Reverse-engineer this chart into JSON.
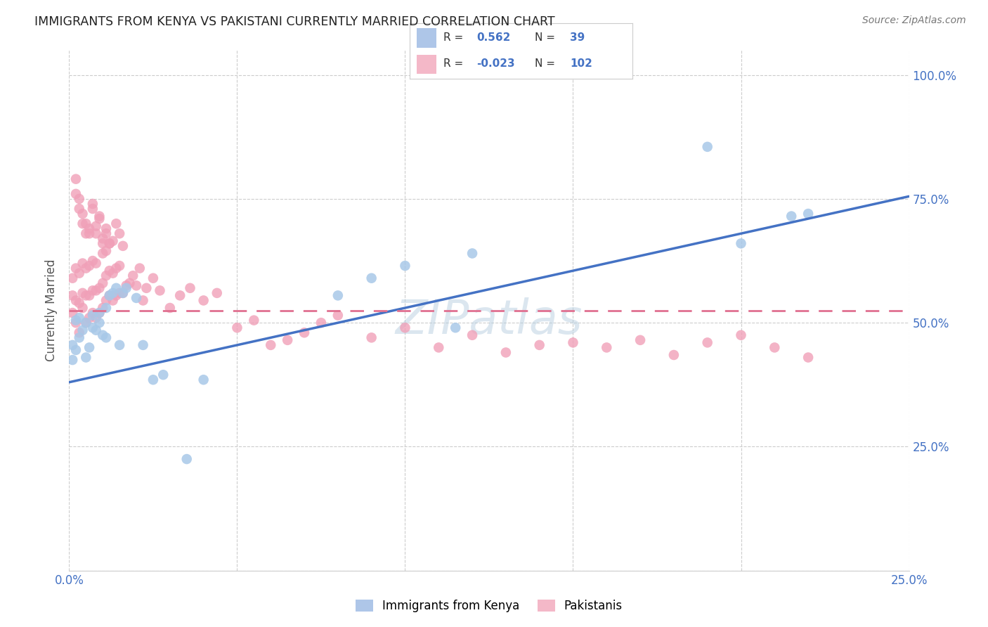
{
  "title": "IMMIGRANTS FROM KENYA VS PAKISTANI CURRENTLY MARRIED CORRELATION CHART",
  "source": "Source: ZipAtlas.com",
  "ylabel": "Currently Married",
  "xlim": [
    0,
    0.25
  ],
  "ylim": [
    0.0,
    1.05
  ],
  "ytick_vals": [
    0.0,
    0.25,
    0.5,
    0.75,
    1.0
  ],
  "ytick_labels": [
    "",
    "25.0%",
    "50.0%",
    "75.0%",
    "100.0%"
  ],
  "xtick_positions": [
    0.0,
    0.05,
    0.1,
    0.15,
    0.2,
    0.25
  ],
  "xtick_labels": [
    "0.0%",
    "",
    "",
    "",
    "",
    "25.0%"
  ],
  "r_kenya": 0.562,
  "n_kenya": 39,
  "r_pakistan": -0.023,
  "n_pakistan": 102,
  "blue_scatter_color": "#a8c8e8",
  "pink_scatter_color": "#f0a0b8",
  "blue_line_color": "#4472c4",
  "pink_line_color": "#e07090",
  "tick_color": "#4472c4",
  "grid_color": "#cccccc",
  "watermark": "ZIPatlas",
  "legend_box_blue": "#aec6e8",
  "legend_box_pink": "#f4b8c8",
  "legend_text_color": "#333333",
  "legend_value_color": "#4472c4",
  "blue_line_y0": 0.38,
  "blue_line_y1": 0.755,
  "pink_line_y0": 0.525,
  "pink_line_y1": 0.525,
  "kenya_x": [
    0.001,
    0.001,
    0.002,
    0.002,
    0.003,
    0.003,
    0.004,
    0.005,
    0.005,
    0.006,
    0.007,
    0.007,
    0.008,
    0.009,
    0.009,
    0.01,
    0.011,
    0.011,
    0.012,
    0.013,
    0.014,
    0.015,
    0.016,
    0.017,
    0.02,
    0.022,
    0.025,
    0.028,
    0.035,
    0.04,
    0.08,
    0.09,
    0.1,
    0.115,
    0.12,
    0.19,
    0.2,
    0.215,
    0.22
  ],
  "kenya_y": [
    0.425,
    0.455,
    0.445,
    0.505,
    0.47,
    0.51,
    0.485,
    0.43,
    0.5,
    0.45,
    0.49,
    0.515,
    0.485,
    0.5,
    0.52,
    0.475,
    0.47,
    0.53,
    0.555,
    0.56,
    0.57,
    0.455,
    0.56,
    0.57,
    0.55,
    0.455,
    0.385,
    0.395,
    0.225,
    0.385,
    0.555,
    0.59,
    0.615,
    0.49,
    0.64,
    0.855,
    0.66,
    0.715,
    0.72
  ],
  "pakistan_x": [
    0.001,
    0.001,
    0.001,
    0.002,
    0.002,
    0.002,
    0.003,
    0.003,
    0.003,
    0.004,
    0.004,
    0.004,
    0.005,
    0.005,
    0.005,
    0.006,
    0.006,
    0.006,
    0.007,
    0.007,
    0.007,
    0.008,
    0.008,
    0.008,
    0.009,
    0.009,
    0.01,
    0.01,
    0.01,
    0.011,
    0.011,
    0.011,
    0.012,
    0.012,
    0.013,
    0.013,
    0.014,
    0.014,
    0.015,
    0.015,
    0.016,
    0.017,
    0.018,
    0.019,
    0.02,
    0.021,
    0.022,
    0.023,
    0.025,
    0.027,
    0.03,
    0.033,
    0.036,
    0.04,
    0.044,
    0.05,
    0.055,
    0.06,
    0.065,
    0.07,
    0.075,
    0.08,
    0.09,
    0.1,
    0.11,
    0.12,
    0.13,
    0.14,
    0.15,
    0.16,
    0.17,
    0.18,
    0.19,
    0.2,
    0.21,
    0.22,
    0.002,
    0.003,
    0.004,
    0.005,
    0.006,
    0.007,
    0.008,
    0.009,
    0.01,
    0.011,
    0.012,
    0.013,
    0.014,
    0.015,
    0.016,
    0.002,
    0.003,
    0.004,
    0.005,
    0.006,
    0.007,
    0.008,
    0.009,
    0.01,
    0.011,
    0.012
  ],
  "pakistan_y": [
    0.52,
    0.555,
    0.59,
    0.5,
    0.545,
    0.61,
    0.48,
    0.54,
    0.6,
    0.53,
    0.56,
    0.62,
    0.5,
    0.555,
    0.61,
    0.51,
    0.555,
    0.615,
    0.52,
    0.565,
    0.625,
    0.51,
    0.565,
    0.62,
    0.52,
    0.57,
    0.53,
    0.58,
    0.64,
    0.545,
    0.595,
    0.645,
    0.555,
    0.605,
    0.545,
    0.6,
    0.555,
    0.61,
    0.56,
    0.615,
    0.56,
    0.575,
    0.58,
    0.595,
    0.575,
    0.61,
    0.545,
    0.57,
    0.59,
    0.565,
    0.53,
    0.555,
    0.57,
    0.545,
    0.56,
    0.49,
    0.505,
    0.455,
    0.465,
    0.48,
    0.5,
    0.515,
    0.47,
    0.49,
    0.45,
    0.475,
    0.44,
    0.455,
    0.46,
    0.45,
    0.465,
    0.435,
    0.46,
    0.475,
    0.45,
    0.43,
    0.76,
    0.73,
    0.7,
    0.68,
    0.68,
    0.73,
    0.68,
    0.71,
    0.66,
    0.68,
    0.66,
    0.665,
    0.7,
    0.68,
    0.655,
    0.79,
    0.75,
    0.72,
    0.7,
    0.69,
    0.74,
    0.695,
    0.715,
    0.67,
    0.69,
    0.66
  ]
}
